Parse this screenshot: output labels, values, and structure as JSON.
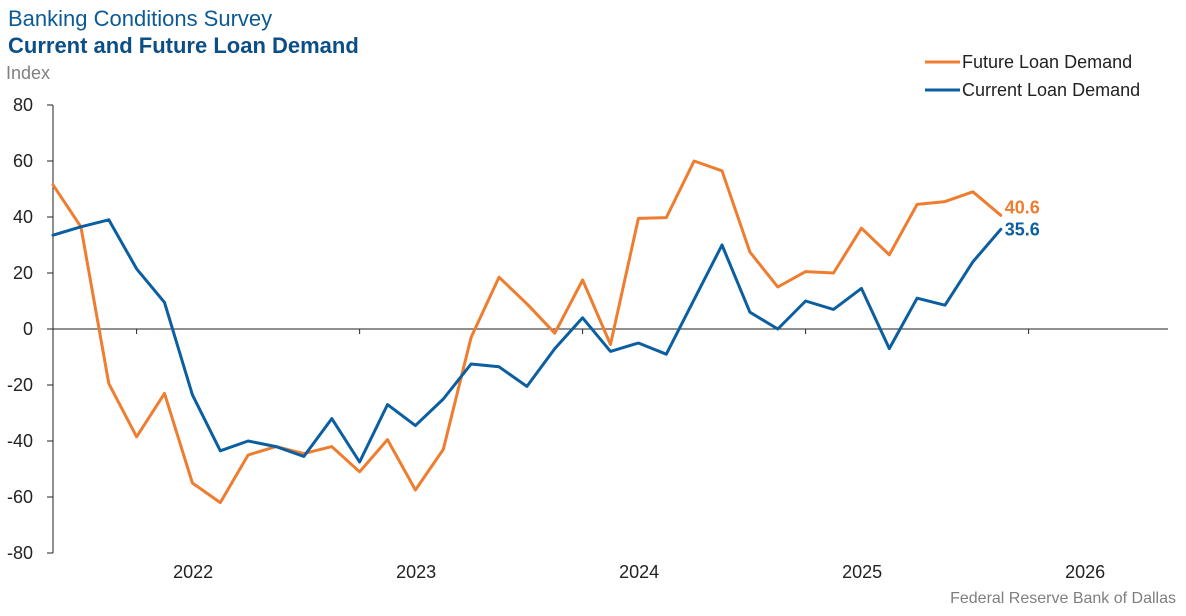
{
  "header": {
    "title": "Banking Conditions Survey",
    "subtitle": "Current and Future Loan Demand",
    "unit": "Index"
  },
  "footer": {
    "source": "Federal Reserve Bank of Dallas"
  },
  "colors": {
    "future": "#ef7d2f",
    "current": "#0b5fa0",
    "axis": "#222222"
  },
  "chart_data": {
    "type": "line",
    "title": "Current and Future Loan Demand",
    "ylabel": "Index",
    "ylim": [
      -80,
      80
    ],
    "yticks": [
      80,
      60,
      40,
      20,
      0,
      -20,
      -40,
      -60,
      -80
    ],
    "xlim": [
      2021.625,
      2026.625
    ],
    "xticks": [
      "2022",
      "2023",
      "2024",
      "2025",
      "2026"
    ],
    "legend_position": "top-right",
    "grid": false,
    "x": [
      2021.625,
      2021.75,
      2021.875,
      2022.0,
      2022.125,
      2022.25,
      2022.375,
      2022.5,
      2022.625,
      2022.75,
      2022.875,
      2023.0,
      2023.125,
      2023.25,
      2023.375,
      2023.5,
      2023.625,
      2023.75,
      2023.875,
      2024.0,
      2024.125,
      2024.25,
      2024.375,
      2024.5,
      2024.625,
      2024.75,
      2024.875,
      2025.0,
      2025.125,
      2025.25,
      2025.375,
      2025.5,
      2025.625,
      2025.75,
      2025.875
    ],
    "series": [
      {
        "name": "Future Loan Demand",
        "values": [
          51.5,
          36.5,
          -19.5,
          -38.5,
          -23,
          -55,
          -62,
          -45,
          -42,
          -44.5,
          -42,
          -51,
          -39.5,
          -57.5,
          -43,
          -3,
          18.5,
          9,
          -1.5,
          17.5,
          -5.5,
          39.5,
          39.8,
          60,
          56.5,
          27.5,
          15,
          20.5,
          20,
          36,
          26.5,
          44.5,
          45.5,
          49,
          40.6
        ]
      },
      {
        "name": "Current Loan Demand",
        "values": [
          33.5,
          36.5,
          39,
          21.5,
          9.5,
          -23.5,
          -43.5,
          -40,
          -42,
          -45.5,
          -32,
          -47.5,
          -27,
          -34.5,
          -25,
          -12.5,
          -13.5,
          -20.5,
          -7,
          4,
          -8,
          -5,
          -9,
          10.5,
          30,
          6,
          0,
          10,
          7,
          14.5,
          -7,
          11,
          8.5,
          24,
          35.6
        ]
      }
    ],
    "end_labels": [
      "40.6",
      "35.6"
    ]
  }
}
